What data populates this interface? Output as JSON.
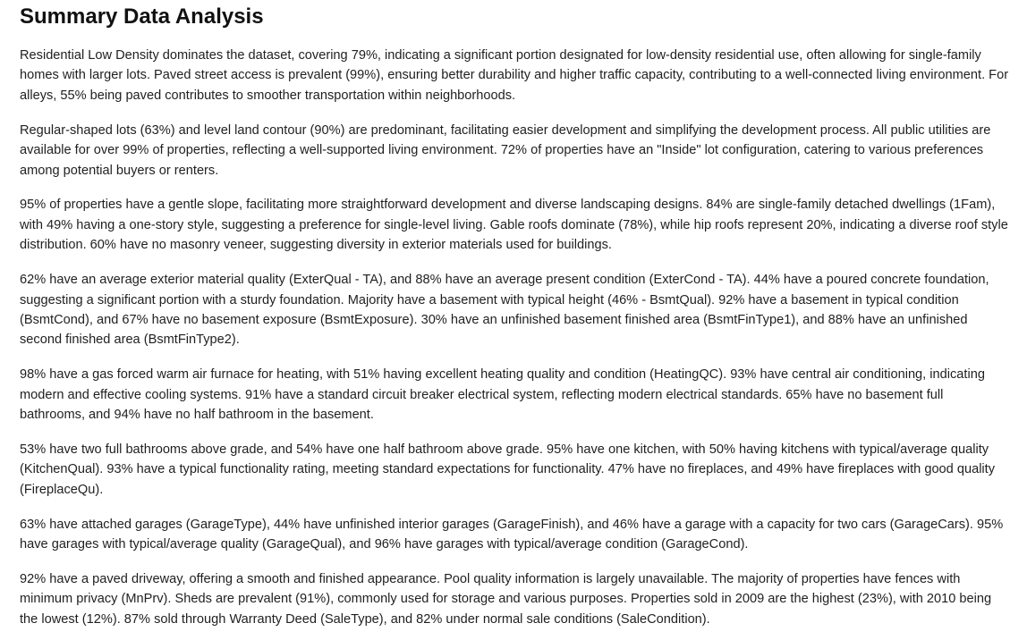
{
  "title": "Summary Data Analysis",
  "paragraphs": [
    "Residential Low Density dominates the dataset, covering 79%, indicating a significant portion designated for low-density residential use, often allowing for single-family homes with larger lots. Paved street access is prevalent (99%), ensuring better durability and higher traffic capacity, contributing to a well-connected living environment. For alleys, 55% being paved contributes to smoother transportation within neighborhoods.",
    "Regular-shaped lots (63%) and level land contour (90%) are predominant, facilitating easier development and simplifying the development process. All public utilities are available for over 99% of properties, reflecting a well-supported living environment. 72% of properties have an \"Inside\" lot configuration, catering to various preferences among potential buyers or renters.",
    "95% of properties have a gentle slope, facilitating more straightforward development and diverse landscaping designs. 84% are single-family detached dwellings (1Fam), with 49% having a one-story style, suggesting a preference for single-level living. Gable roofs dominate (78%), while hip roofs represent 20%, indicating a diverse roof style distribution. 60% have no masonry veneer, suggesting diversity in exterior materials used for buildings.",
    "62% have an average exterior material quality (ExterQual - TA), and 88% have an average present condition (ExterCond - TA). 44% have a poured concrete foundation, suggesting a significant portion with a sturdy foundation. Majority have a basement with typical height (46% - BsmtQual). 92% have a basement in typical condition (BsmtCond), and 67% have no basement exposure (BsmtExposure). 30% have an unfinished basement finished area (BsmtFinType1), and 88% have an unfinished second finished area (BsmtFinType2).",
    "98% have a gas forced warm air furnace for heating, with 51% having excellent heating quality and condition (HeatingQC). 93% have central air conditioning, indicating modern and effective cooling systems. 91% have a standard circuit breaker electrical system, reflecting modern electrical standards. 65% have no basement full bathrooms, and 94% have no half bathroom in the basement.",
    "53% have two full bathrooms above grade, and 54% have one half bathroom above grade. 95% have one kitchen, with 50% having kitchens with typical/average quality (KitchenQual). 93% have a typical functionality rating, meeting standard expectations for functionality. 47% have no fireplaces, and 49% have fireplaces with good quality (FireplaceQu).",
    "63% have attached garages (GarageType), 44% have unfinished interior garages (GarageFinish), and 46% have a garage with a capacity for two cars (GarageCars). 95% have garages with typical/average quality (GarageQual), and 96% have garages with typical/average condition (GarageCond).",
    "92% have a paved driveway, offering a smooth and finished appearance. Pool quality information is largely unavailable. The majority of properties have fences with minimum privacy (MnPrv). Sheds are prevalent (91%), commonly used for storage and various purposes. Properties sold in 2009 are the highest (23%), with 2010 being the lowest (12%). 87% sold through Warranty Deed (SaleType), and 82% under normal sale conditions (SaleCondition)."
  ]
}
